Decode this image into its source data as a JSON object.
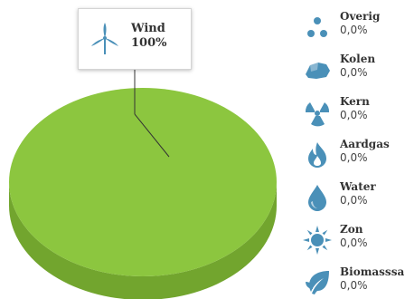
{
  "chart_data": {
    "type": "pie",
    "categories": [
      "Wind",
      "Overig",
      "Kolen",
      "Kern",
      "Aardgas",
      "Water",
      "Zon",
      "Biomasssa"
    ],
    "values": [
      100,
      0,
      0,
      0,
      0,
      0,
      0,
      0
    ],
    "colors": {
      "pie_top": "#8cc63f",
      "pie_side": "#72a52e",
      "icon": "#4a90b8"
    }
  },
  "tooltip": {
    "label": "Wind",
    "value": "100%",
    "icon": "wind-turbine-icon"
  },
  "legend": [
    {
      "label": "Overig",
      "value": "0,0%",
      "icon": "dots-icon"
    },
    {
      "label": "Kolen",
      "value": "0,0%",
      "icon": "coal-icon"
    },
    {
      "label": "Kern",
      "value": "0,0%",
      "icon": "radiation-icon"
    },
    {
      "label": "Aardgas",
      "value": "0,0%",
      "icon": "flame-icon"
    },
    {
      "label": "Water",
      "value": "0,0%",
      "icon": "water-drop-icon"
    },
    {
      "label": "Zon",
      "value": "0,0%",
      "icon": "sun-icon"
    },
    {
      "label": "Biomasssa",
      "value": "0,0%",
      "icon": "leaf-icon"
    }
  ]
}
